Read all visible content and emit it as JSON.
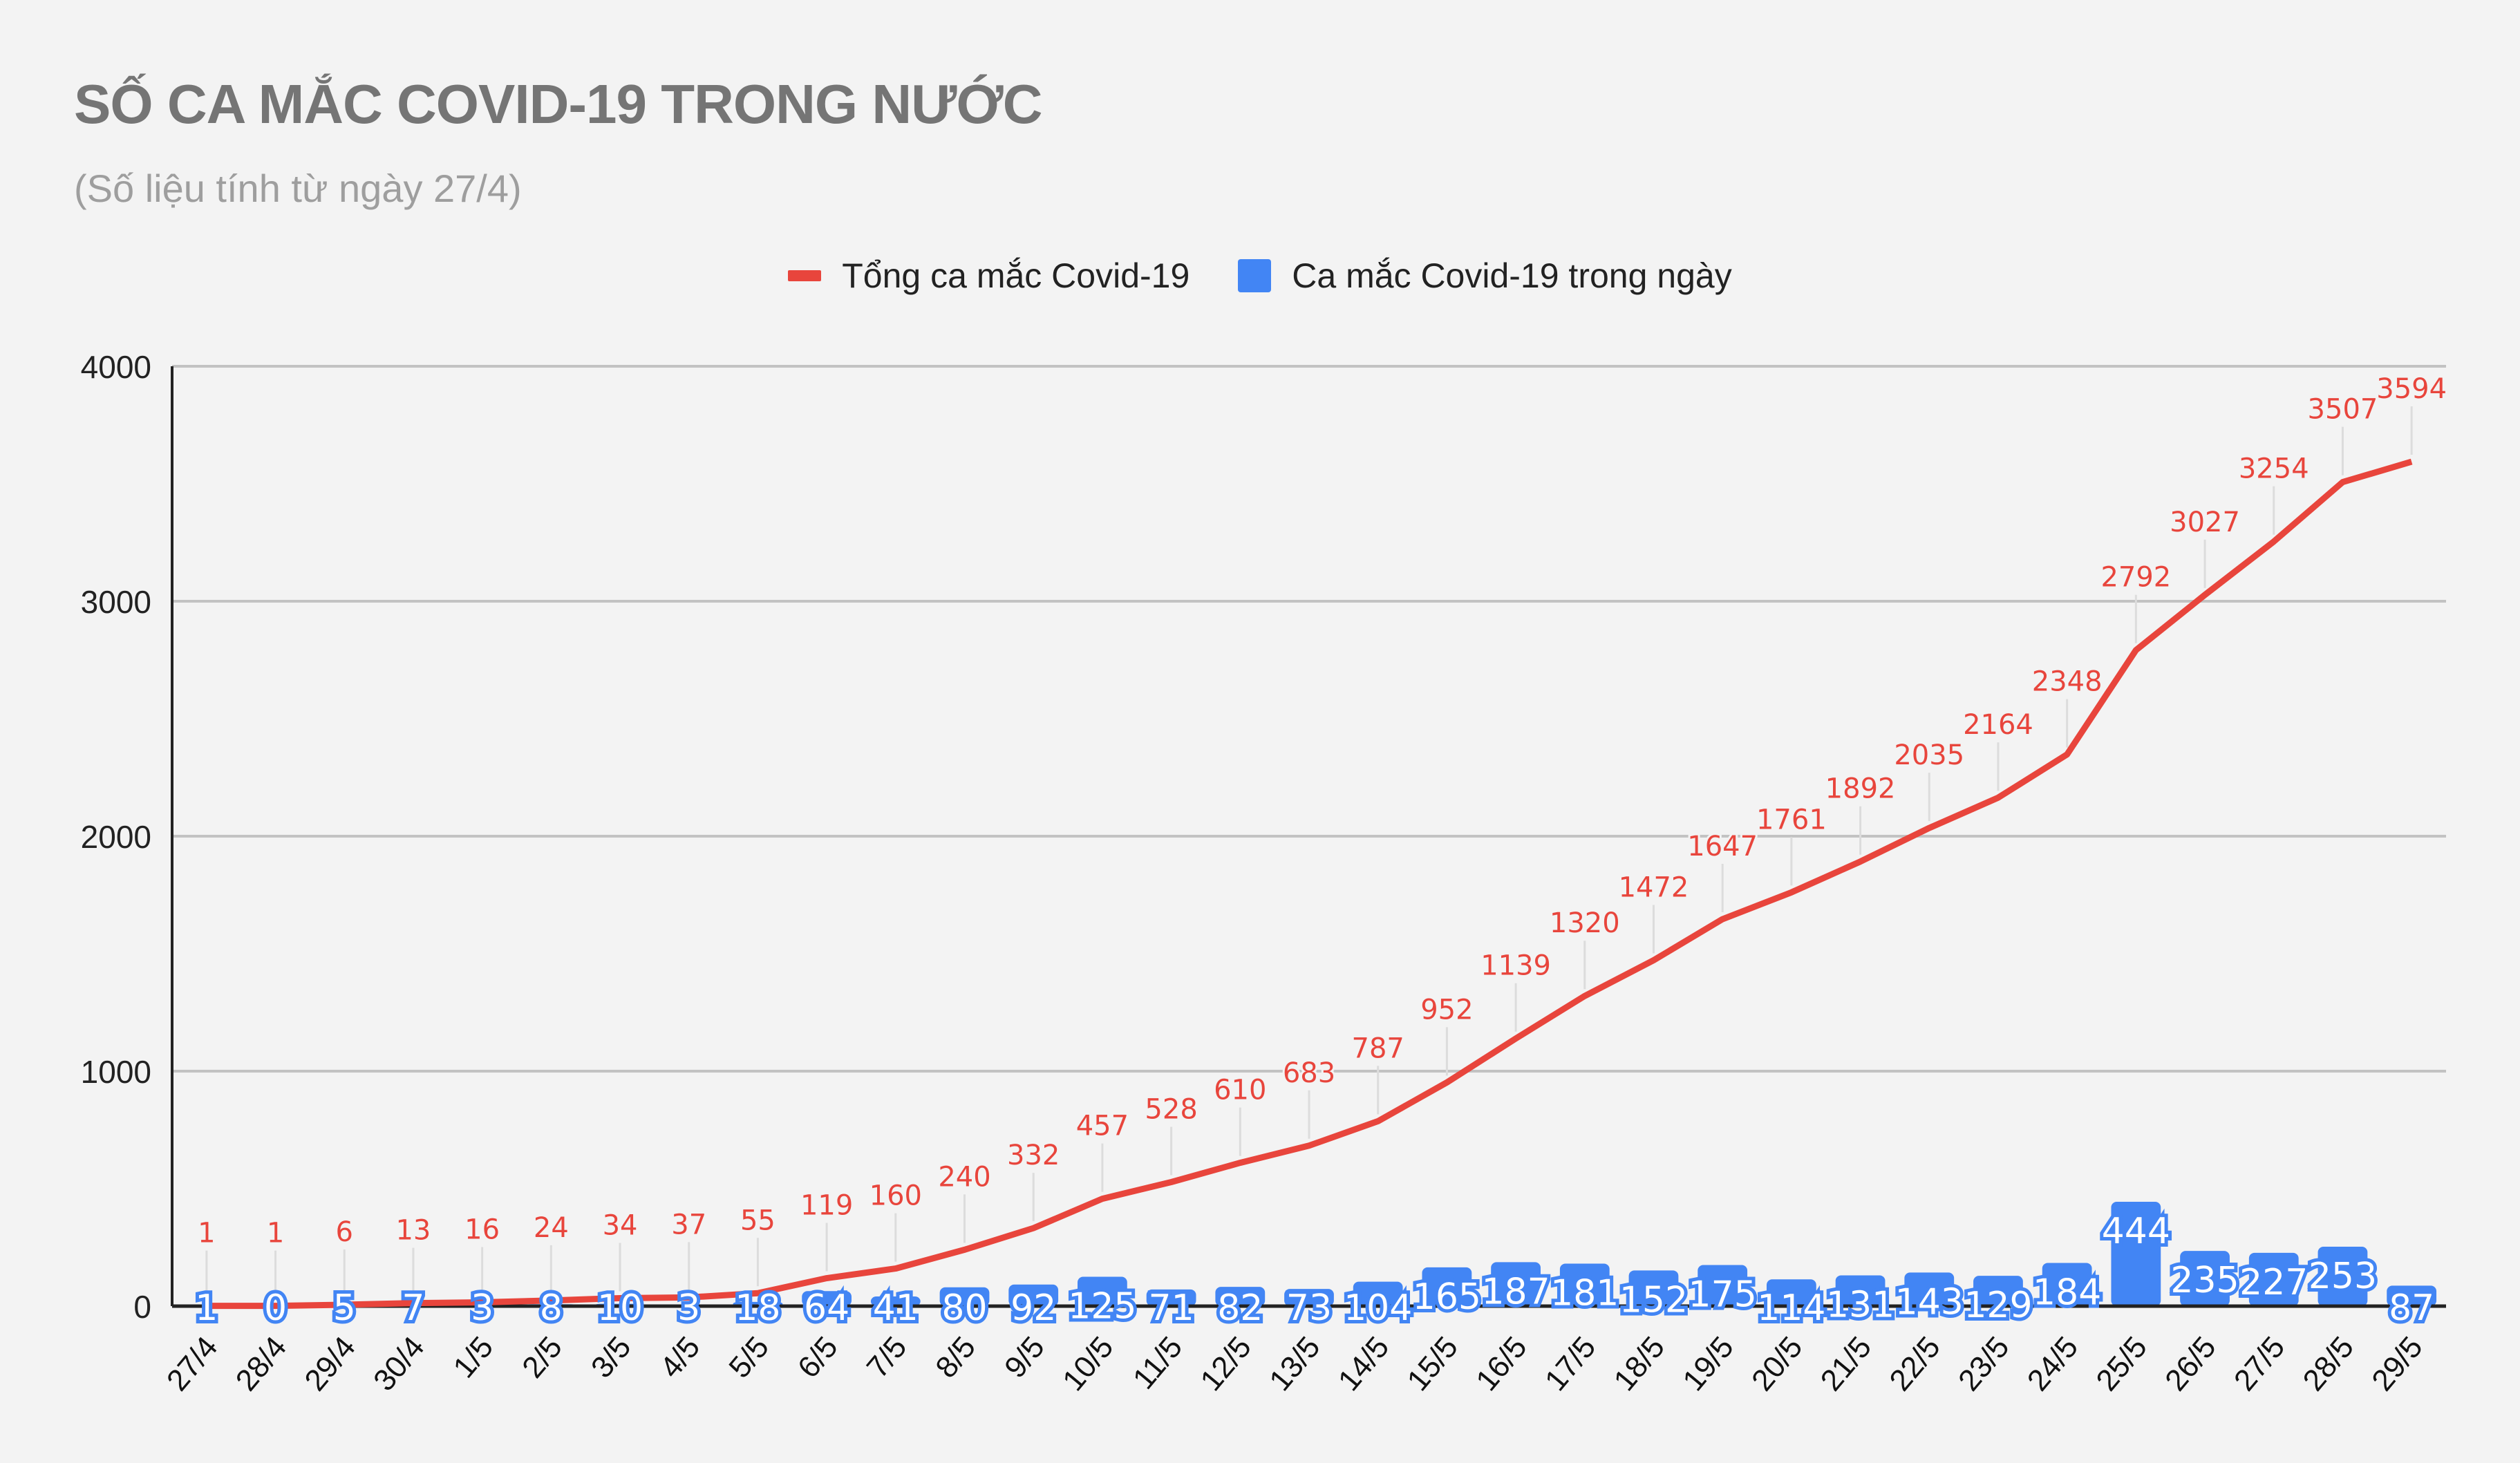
{
  "header": {
    "title": "SỐ CA MẮC COVID-19 TRONG NƯỚC",
    "subtitle": "(Số liệu tính từ ngày 27/4)"
  },
  "legend": [
    {
      "label": "Tổng ca mắc Covid-19",
      "color": "#e8453c",
      "shape": "line"
    },
    {
      "label": "Ca mắc Covid-19 trong ngày",
      "color": "#4285f4",
      "shape": "square"
    }
  ],
  "chart_data": {
    "type": "bar+line",
    "title": "SỐ CA MẮC COVID-19 TRONG NƯỚC",
    "subtitle": "(Số liệu tính từ ngày 27/4)",
    "xlabel": "",
    "ylabel": "",
    "ylim": [
      0,
      4000
    ],
    "yticks": [
      0,
      1000,
      2000,
      3000,
      4000
    ],
    "grid": true,
    "legend_position": "top",
    "categories": [
      "27/4",
      "28/4",
      "29/4",
      "30/4",
      "1/5",
      "2/5",
      "3/5",
      "4/5",
      "5/5",
      "6/5",
      "7/5",
      "8/5",
      "9/5",
      "10/5",
      "11/5",
      "12/5",
      "13/5",
      "14/5",
      "15/5",
      "16/5",
      "17/5",
      "18/5",
      "19/5",
      "20/5",
      "21/5",
      "22/5",
      "23/5",
      "24/5",
      "25/5",
      "26/5",
      "27/5",
      "28/5",
      "29/5"
    ],
    "series": [
      {
        "name": "Tổng ca mắc Covid-19",
        "type": "line",
        "color": "#e8453c",
        "values": [
          1,
          1,
          6,
          13,
          16,
          24,
          34,
          37,
          55,
          119,
          160,
          240,
          332,
          457,
          528,
          610,
          683,
          787,
          952,
          1139,
          1320,
          1472,
          1647,
          1761,
          1892,
          2035,
          2164,
          2348,
          2792,
          3027,
          3254,
          3507,
          3594
        ]
      },
      {
        "name": "Ca mắc Covid-19 trong ngày",
        "type": "bar",
        "color": "#4285f4",
        "values": [
          1,
          0,
          5,
          7,
          3,
          8,
          10,
          3,
          18,
          64,
          41,
          80,
          92,
          125,
          71,
          82,
          73,
          104,
          165,
          187,
          181,
          152,
          175,
          114,
          131,
          143,
          129,
          184,
          444,
          235,
          227,
          253,
          87
        ]
      }
    ]
  }
}
